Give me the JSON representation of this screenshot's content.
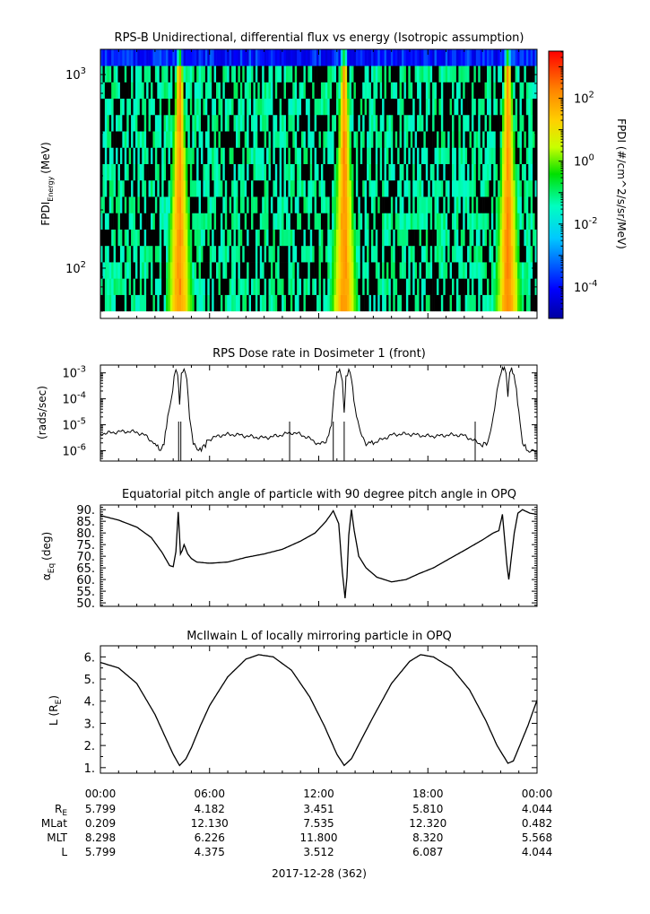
{
  "chart_data": [
    {
      "type": "heatmap",
      "title": "RPS-B  Unidirectional, differential flux vs energy (Isotropic assumption)",
      "ylabel": "FPDI",
      "ylabel_sub": "Energy",
      "ylabel_unit": "(MeV)",
      "yscale": "log",
      "ylim": [
        55,
        1350
      ],
      "yticks": [
        {
          "value": 100,
          "base": "10",
          "exp": "2"
        },
        {
          "value": 1000,
          "base": "10",
          "exp": "3"
        }
      ],
      "xlim": [
        0,
        24
      ],
      "belt_crossings_hours": [
        4.35,
        13.4,
        22.4
      ],
      "colorbar": {
        "label": "FPDI (#/cm^2/s/sr/MeV)",
        "scale": "log",
        "range_log10": [
          -5,
          3.5
        ],
        "colormap": [
          "#0000a0",
          "#0000ff",
          "#00c8ff",
          "#00ffc0",
          "#00e000",
          "#c8ff00",
          "#ffd000",
          "#ff8000",
          "#ff0000"
        ],
        "ticks": [
          {
            "value": 0.0001,
            "base": "10",
            "exp": "-4"
          },
          {
            "value": 0.01,
            "base": "10",
            "exp": "-2"
          },
          {
            "value": 1,
            "base": "10",
            "exp": "0"
          },
          {
            "value": 100,
            "base": "10",
            "exp": "2"
          }
        ]
      }
    },
    {
      "type": "line",
      "title": "RPS  Dose rate in Dosimeter 1 (front)",
      "ylabel": "(rads/sec)",
      "yscale": "log",
      "ylim": [
        4e-07,
        0.002
      ],
      "yticks": [
        {
          "value": 1e-06,
          "base": "10",
          "exp": "-6"
        },
        {
          "value": 1e-05,
          "base": "10",
          "exp": "-5"
        },
        {
          "value": 0.0001,
          "base": "10",
          "exp": "-4"
        },
        {
          "value": 0.001,
          "base": "10",
          "exp": "-3"
        }
      ],
      "x": [
        0,
        1,
        2,
        2.5,
        3.0,
        3.3,
        3.5,
        3.7,
        3.9,
        4.05,
        4.15,
        4.25,
        4.35,
        4.45,
        4.6,
        4.75,
        4.9,
        5.1,
        5.4,
        5.7,
        6.0,
        6.5,
        7.0,
        8.0,
        9.0,
        10.0,
        10.5,
        11.0,
        11.5,
        12.0,
        12.4,
        12.7,
        12.85,
        13.0,
        13.15,
        13.3,
        13.4,
        13.5,
        13.65,
        13.8,
        14.0,
        14.3,
        14.6,
        15.0,
        15.5,
        16.0,
        17.0,
        18.0,
        19.0,
        20.0,
        20.5,
        21.0,
        21.3,
        21.6,
        21.8,
        21.95,
        22.1,
        22.2,
        22.3,
        22.4,
        22.5,
        22.6,
        22.8,
        23.0,
        23.2,
        23.5,
        24.0
      ],
      "values": [
        5e-06,
        5e-06,
        5e-06,
        4e-06,
        2e-06,
        1e-06,
        2e-06,
        2e-05,
        0.0001,
        0.0006,
        0.0013,
        0.001,
        6e-05,
        0.0009,
        0.0014,
        0.0006,
        2e-05,
        2e-06,
        1e-06,
        1.5e-06,
        3e-06,
        4e-06,
        4e-06,
        3.5e-06,
        3.5e-06,
        4e-06,
        4.5e-06,
        4e-06,
        3e-06,
        2e-06,
        2e-06,
        1e-05,
        0.0002,
        0.001,
        0.0013,
        0.0005,
        3e-05,
        0.0006,
        0.0014,
        0.0006,
        4e-05,
        5e-06,
        1.8e-06,
        2.2e-06,
        3e-06,
        4e-06,
        4e-06,
        4e-06,
        4e-06,
        3.5e-06,
        2.5e-06,
        1.8e-06,
        2e-06,
        2e-05,
        0.0002,
        0.0007,
        0.0014,
        0.0015,
        0.001,
        0.00015,
        0.0009,
        0.0015,
        0.0005,
        3e-05,
        2e-06,
        1e-06,
        1e-06
      ]
    },
    {
      "type": "line",
      "title": "Equatorial pitch angle of particle with 90 degree pitch angle in OPQ",
      "ylabel": "α",
      "ylabel_sub": "Eq",
      "ylabel_unit": "(deg)",
      "ylim": [
        48.5,
        92
      ],
      "yticks": [
        50,
        55,
        60,
        65,
        70,
        75,
        80,
        85,
        90
      ],
      "yticklabels": [
        "50.",
        "55.",
        "60.",
        "65.",
        "70.",
        "75.",
        "80.",
        "85.",
        "90."
      ],
      "x": [
        0,
        1,
        2,
        2.8,
        3.4,
        3.8,
        4.0,
        4.15,
        4.28,
        4.4,
        4.5,
        4.6,
        4.7,
        4.8,
        5.0,
        5.3,
        6.0,
        7.0,
        8.0,
        9.0,
        10.0,
        11.0,
        11.8,
        12.4,
        12.8,
        13.1,
        13.3,
        13.45,
        13.55,
        13.65,
        13.8,
        13.95,
        14.2,
        14.6,
        15.2,
        16.0,
        16.8,
        17.5,
        18.3,
        19.2,
        20.0,
        21.0,
        21.6,
        21.9,
        22.1,
        22.35,
        22.45,
        22.55,
        22.75,
        22.95,
        23.2,
        23.6,
        24.0
      ],
      "values": [
        87.5,
        85.5,
        82.5,
        78.0,
        71.5,
        66.0,
        65.5,
        72.0,
        89.0,
        71.0,
        72.5,
        75.0,
        73.0,
        71.0,
        69.0,
        67.5,
        67.0,
        67.5,
        69.5,
        71.0,
        73.0,
        76.5,
        80.0,
        85.0,
        89.5,
        84.0,
        63.0,
        52.0,
        61.0,
        79.0,
        90.0,
        81.0,
        70.0,
        65.0,
        61.0,
        59.0,
        60.0,
        62.5,
        65.0,
        69.0,
        72.5,
        77.0,
        80.0,
        81.0,
        88.0,
        66.0,
        60.0,
        67.0,
        80.0,
        88.5,
        90.0,
        88.5,
        88.0
      ]
    },
    {
      "type": "line",
      "title": "McIlwain L of locally mirroring particle in OPQ",
      "ylabel": "L (R",
      "ylabel_sub": "E",
      "ylabel_unit": ")",
      "ylim": [
        0.75,
        6.5
      ],
      "yticks": [
        1,
        2,
        3,
        4,
        5,
        6
      ],
      "yticklabels": [
        "1.",
        "2.",
        "3.",
        "4.",
        "5.",
        "6."
      ],
      "x": [
        0,
        1,
        2,
        3,
        3.5,
        4.0,
        4.35,
        4.7,
        5.0,
        5.5,
        6.0,
        7.0,
        8.0,
        8.7,
        9.5,
        10.5,
        11.5,
        12.3,
        13.0,
        13.4,
        13.8,
        14.3,
        15.0,
        16.0,
        17.0,
        17.6,
        18.3,
        19.3,
        20.3,
        21.2,
        21.8,
        22.4,
        22.7,
        23.0,
        23.5,
        24.0
      ],
      "values": [
        5.75,
        5.5,
        4.8,
        3.4,
        2.5,
        1.6,
        1.1,
        1.4,
        1.9,
        2.9,
        3.8,
        5.1,
        5.9,
        6.1,
        6.0,
        5.4,
        4.2,
        2.9,
        1.6,
        1.1,
        1.4,
        2.2,
        3.3,
        4.8,
        5.8,
        6.1,
        6.0,
        5.5,
        4.5,
        3.1,
        2.0,
        1.2,
        1.3,
        1.9,
        2.9,
        4.05
      ]
    }
  ],
  "x_axis": {
    "range_hours": [
      0,
      24
    ],
    "major_ticks_hours": [
      0,
      6,
      12,
      18,
      24
    ],
    "minor_step_hours": 1,
    "time_labels": [
      "00:00",
      "06:00",
      "12:00",
      "18:00",
      "00:00"
    ],
    "ephemeris": [
      {
        "name": "R",
        "name_sub": "E",
        "values": [
          "5.799",
          "4.182",
          "3.451",
          "5.810",
          "4.044"
        ]
      },
      {
        "name": "MLat",
        "name_sub": "",
        "values": [
          "0.209",
          "12.130",
          "7.535",
          "12.320",
          "0.482"
        ]
      },
      {
        "name": "MLT",
        "name_sub": "",
        "values": [
          "8.298",
          "6.226",
          "11.800",
          "8.320",
          "5.568"
        ]
      },
      {
        "name": "L",
        "name_sub": "",
        "values": [
          "5.799",
          "4.375",
          "3.512",
          "6.087",
          "4.044"
        ]
      }
    ],
    "date_label": "2017-12-28 (362)"
  }
}
